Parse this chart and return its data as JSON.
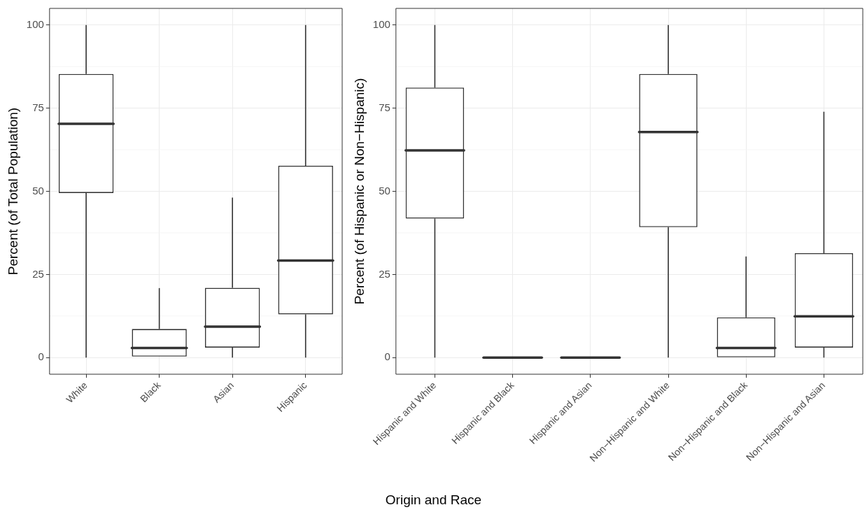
{
  "chart_data": [
    {
      "type": "box",
      "ylabel": "Percent (of Total Population)",
      "categories": [
        "White",
        "Black",
        "Asian",
        "Hispanic"
      ],
      "ylim": [
        -5,
        105
      ],
      "yticks": [
        0,
        25,
        50,
        75,
        100
      ],
      "grid": true,
      "series": [
        {
          "color": "#333333",
          "boxes": [
            {
              "low": 0,
              "q1": 49.5,
              "median": 70.3,
              "q3": 85.3,
              "high": 100
            },
            {
              "low": 0.3,
              "q1": 0.3,
              "median": 2.9,
              "q3": 8.6,
              "high": 20.9
            },
            {
              "low": 0,
              "q1": 3.0,
              "median": 9.3,
              "q3": 21.0,
              "high": 48.1
            },
            {
              "low": 0,
              "q1": 13.0,
              "median": 29.2,
              "q3": 57.7,
              "high": 100
            }
          ]
        }
      ]
    },
    {
      "type": "box",
      "xlabel": "Origin and Race",
      "ylabel": "Percent (of Hispanic or Non−Hispanic)",
      "categories": [
        "Hispanic and White",
        "Hispanic and Black",
        "Hispanic and Asian",
        "Non−Hispanic and White",
        "Non−Hispanic and Black",
        "Non−Hispanic and Asian"
      ],
      "ylim": [
        -5,
        105
      ],
      "yticks": [
        0,
        25,
        50,
        75,
        100
      ],
      "grid": true,
      "series": [
        {
          "color": "#333333",
          "boxes": [
            {
              "low": 0,
              "q1": 41.8,
              "median": 62.3,
              "q3": 81.2,
              "high": 100
            },
            {
              "low": 0,
              "q1": 0,
              "median": 0,
              "q3": 0,
              "high": 0
            },
            {
              "low": 0,
              "q1": 0,
              "median": 0,
              "q3": 0,
              "high": 0
            },
            {
              "low": 0,
              "q1": 39.2,
              "median": 67.8,
              "q3": 85.3,
              "high": 100
            },
            {
              "low": 0,
              "q1": 0,
              "median": 2.9,
              "q3": 12.1,
              "high": 30.4
            },
            {
              "low": 0,
              "q1": 3.0,
              "median": 12.4,
              "q3": 31.4,
              "high": 73.9
            }
          ]
        }
      ]
    }
  ]
}
